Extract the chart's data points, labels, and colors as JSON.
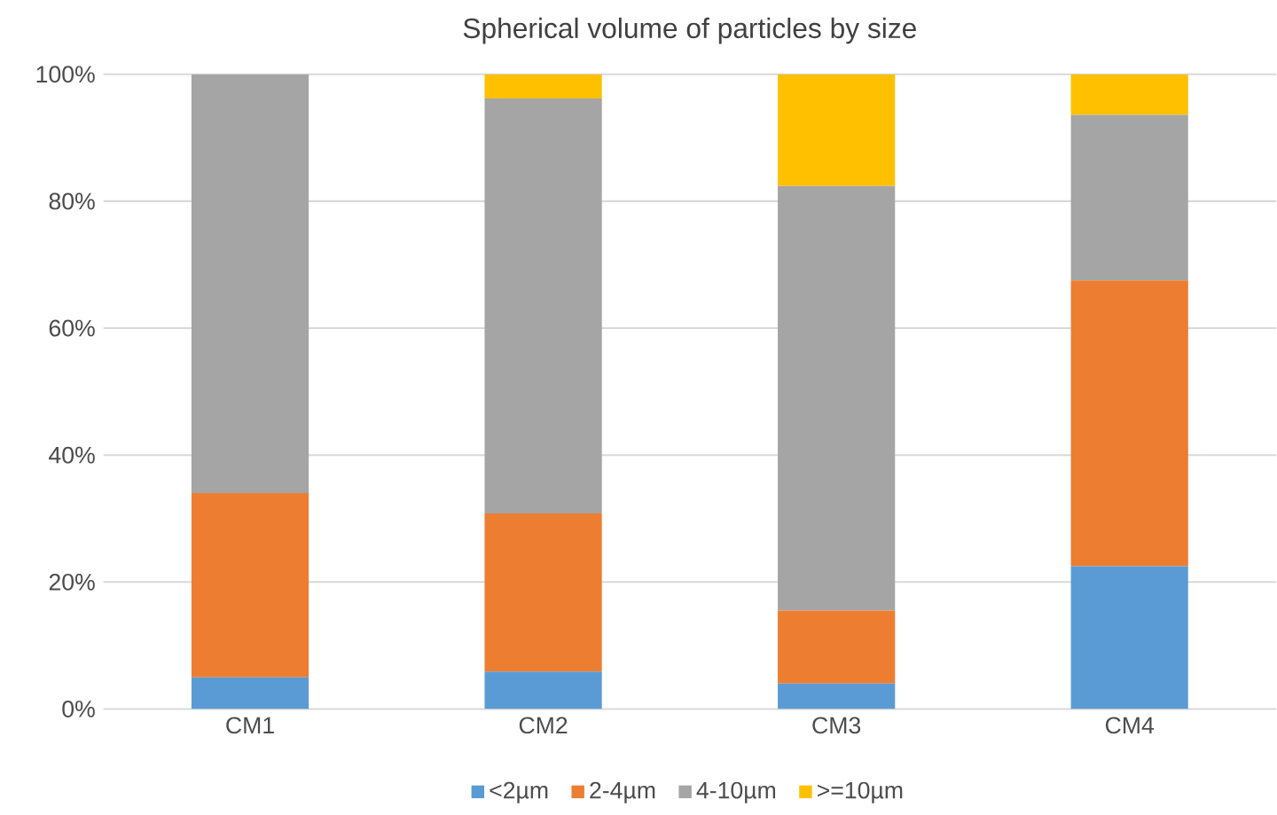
{
  "chart_data": {
    "type": "bar",
    "title": "Spherical volume of particles by size",
    "stacked": true,
    "categories": [
      "CM1",
      "CM2",
      "CM3",
      "CM4"
    ],
    "series": [
      {
        "name": "<2µm",
        "color": "#5b9bd5",
        "values": [
          5.0,
          5.9,
          4.0,
          22.5
        ]
      },
      {
        "name": "2-4µm",
        "color": "#ed7d31",
        "values": [
          29.0,
          24.9,
          11.5,
          45.0
        ]
      },
      {
        "name": "4-10µm",
        "color": "#a5a5a5",
        "values": [
          66.0,
          65.4,
          66.9,
          26.1
        ]
      },
      {
        "name": ">=10µm",
        "color": "#ffc000",
        "values": [
          0,
          3.8,
          17.6,
          6.4
        ]
      }
    ],
    "ylim": [
      0,
      100
    ],
    "yticks": [
      {
        "value": 0,
        "label": "0%"
      },
      {
        "value": 20,
        "label": "20%"
      },
      {
        "value": 40,
        "label": "40%"
      },
      {
        "value": 60,
        "label": "60%"
      },
      {
        "value": 80,
        "label": "80%"
      },
      {
        "value": 100,
        "label": "100%"
      }
    ],
    "grid": "y",
    "legend": "bottom"
  }
}
